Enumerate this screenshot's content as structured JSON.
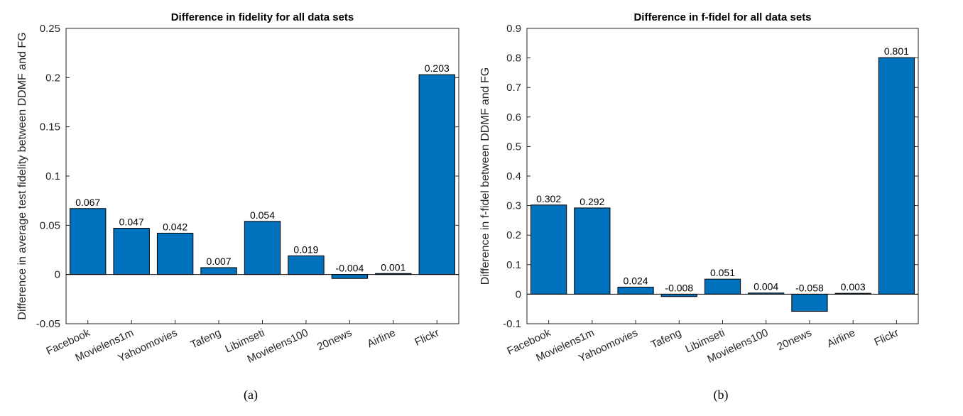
{
  "panels": [
    {
      "caption": "(a)"
    },
    {
      "caption": "(b)"
    }
  ],
  "chart_data": [
    {
      "type": "bar",
      "title": "Difference in fidelity for all data sets",
      "xlabel": "",
      "ylabel": "Difference in average test fidelity between DDMF and FG",
      "categories": [
        "Facebook",
        "Movielens1m",
        "Yahoomovies",
        "Tafeng",
        "Libimseti",
        "Movielens100",
        "20news",
        "Airline",
        "Flickr"
      ],
      "values": [
        0.067,
        0.047,
        0.042,
        0.007,
        0.054,
        0.019,
        -0.004,
        0.001,
        0.203
      ],
      "data_labels": [
        "0.067",
        "0.047",
        "0.042",
        "0.007",
        "0.054",
        "0.019",
        "-0.004",
        "0.001",
        "0.203"
      ],
      "ylim": [
        -0.05,
        0.25
      ],
      "yticks": [
        -0.05,
        0,
        0.05,
        0.1,
        0.15,
        0.2,
        0.25
      ],
      "ytick_labels": [
        "-0.05",
        "0",
        "0.05",
        "0.1",
        "0.15",
        "0.2",
        "0.25"
      ],
      "bar_color": "#0072BD",
      "grid": false
    },
    {
      "type": "bar",
      "title": "Difference in f-fidel for all data sets",
      "xlabel": "",
      "ylabel": "Difference in f-fidel between DDMF and FG",
      "categories": [
        "Facebook",
        "Movielens1m",
        "Yahoomovies",
        "Tafeng",
        "Libimseti",
        "Movielens100",
        "20news",
        "Airline",
        "Flickr"
      ],
      "values": [
        0.302,
        0.292,
        0.024,
        -0.008,
        0.051,
        0.004,
        -0.058,
        0.003,
        0.801
      ],
      "data_labels": [
        "0.302",
        "0.292",
        "0.024",
        "-0.008",
        "0.051",
        "0.004",
        "-0.058",
        "0.003",
        "0.801"
      ],
      "ylim": [
        -0.1,
        0.9
      ],
      "yticks": [
        -0.1,
        0,
        0.1,
        0.2,
        0.3,
        0.4,
        0.5,
        0.6,
        0.7,
        0.8,
        0.9
      ],
      "ytick_labels": [
        "-0.1",
        "0",
        "0.1",
        "0.2",
        "0.3",
        "0.4",
        "0.5",
        "0.6",
        "0.7",
        "0.8",
        "0.9"
      ],
      "bar_color": "#0072BD",
      "grid": false
    }
  ]
}
